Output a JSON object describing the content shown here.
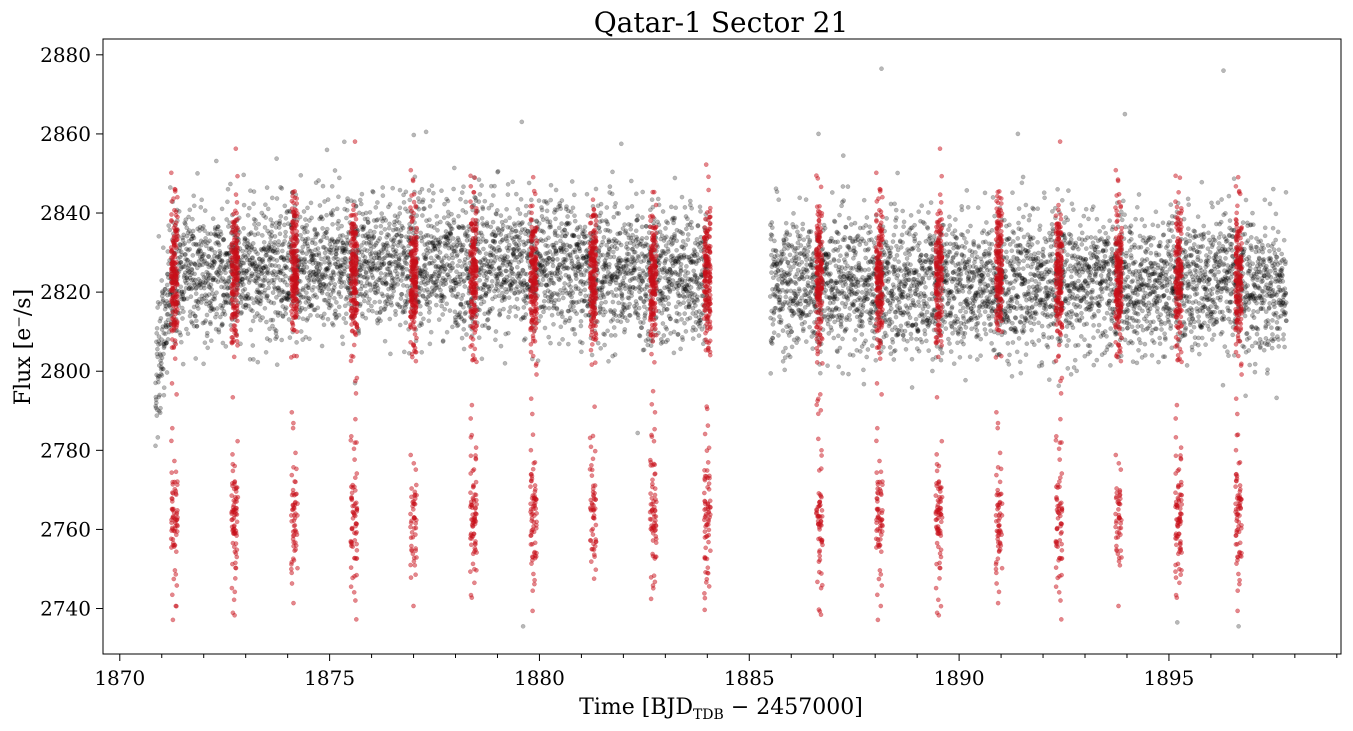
{
  "chart_data": {
    "type": "scatter",
    "title": "Qatar-1 Sector 21",
    "xlabel": {
      "prefix": "Time [BJD",
      "subscript": "TDB",
      "suffix": " − 2457000]"
    },
    "ylabel": "Flux [e⁻/s]",
    "xlim": [
      1869.6,
      1899.1
    ],
    "ylim": [
      2728.5,
      2884.0
    ],
    "xticks": [
      1870,
      1875,
      1880,
      1885,
      1890,
      1895
    ],
    "xtick_labels": [
      "1870",
      "1875",
      "1880",
      "1885",
      "1890",
      "1895"
    ],
    "yticks": [
      2740,
      2760,
      2780,
      2800,
      2820,
      2840,
      2860,
      2880
    ],
    "ytick_labels": [
      "2740",
      "2760",
      "2780",
      "2800",
      "2820",
      "2840",
      "2860",
      "2880"
    ],
    "x_minor_step": 1,
    "grid": false,
    "colors": {
      "baseline": "#000000",
      "in_transit": "#c8101a"
    },
    "observation_windows": [
      [
        1870.85,
        1884.0
      ],
      [
        1885.5,
        1897.8
      ]
    ],
    "baseline_flux": {
      "mean_segment_1": 2824,
      "mean_segment_2": 2822,
      "scatter_sigma": 8.5,
      "ramp_start_flux": 2790,
      "ramp_end_time": 1871.3
    },
    "transit_epochs": [
      1871.3,
      1872.74,
      1874.16,
      1875.58,
      1877.0,
      1878.43,
      1879.86,
      1881.28,
      1882.71,
      1884.0,
      1886.67,
      1888.1,
      1889.52,
      1890.95,
      1892.38,
      1893.8,
      1895.23,
      1896.66
    ],
    "transit_depth_flux": 2763,
    "transit_depth_spread": [
      2737,
      2795
    ],
    "outliers": [
      {
        "x": 1888.15,
        "y": 2876.5
      },
      {
        "x": 1896.3,
        "y": 2876.0
      },
      {
        "x": 1893.95,
        "y": 2865.0
      },
      {
        "x": 1877.3,
        "y": 2860.5
      },
      {
        "x": 1891.4,
        "y": 2860.0
      },
      {
        "x": 1886.65,
        "y": 2860.0
      },
      {
        "x": 1875.35,
        "y": 2858.0
      },
      {
        "x": 1881.95,
        "y": 2857.5
      },
      {
        "x": 1879.61,
        "y": 2735.5
      },
      {
        "x": 1896.66,
        "y": 2735.5
      },
      {
        "x": 1895.2,
        "y": 2736.5
      }
    ]
  }
}
